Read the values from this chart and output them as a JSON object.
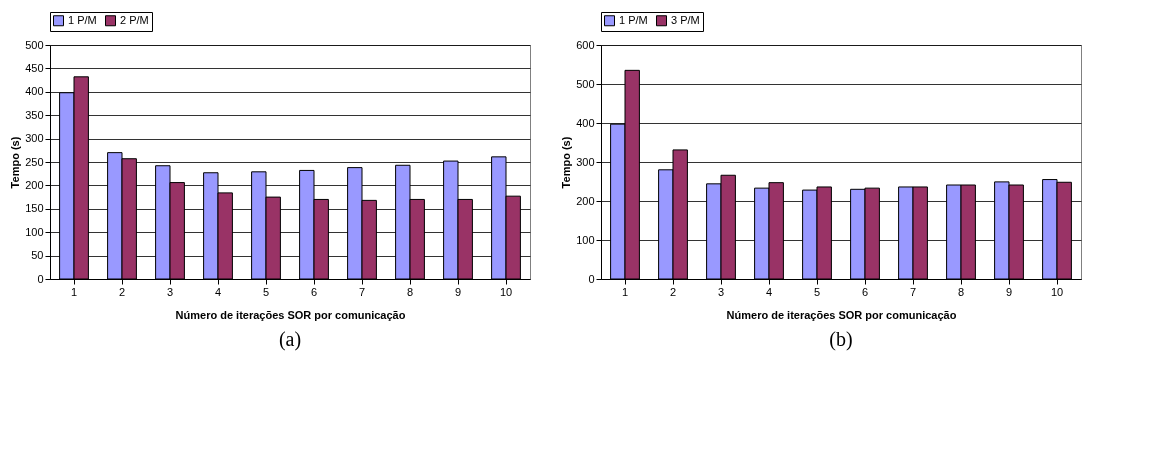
{
  "chart_data": [
    {
      "type": "bar",
      "xlabel": "Número de iterações SOR por comunicação",
      "ylabel": "Tempo (s)",
      "categories": [
        "1",
        "2",
        "3",
        "4",
        "5",
        "6",
        "7",
        "8",
        "9",
        "10"
      ],
      "series": [
        {
          "name": "1 P/M",
          "color": "#9999ff",
          "values": [
            398,
            270,
            242,
            227,
            229,
            232,
            238,
            243,
            252,
            261
          ]
        },
        {
          "name": "2 P/M",
          "color": "#993366",
          "values": [
            432,
            257,
            206,
            184,
            175,
            170,
            168,
            170,
            170,
            177
          ]
        }
      ],
      "ylim": [
        0,
        500
      ],
      "yticks": [
        0,
        50,
        100,
        150,
        200,
        250,
        300,
        350,
        400,
        450,
        500
      ],
      "grid": "y",
      "legend": "top",
      "annotations": [
        "(a)"
      ]
    },
    {
      "type": "bar",
      "xlabel": "Número de iterações SOR por comunicação",
      "ylabel": "Tempo (s)",
      "categories": [
        "1",
        "2",
        "3",
        "4",
        "5",
        "6",
        "7",
        "8",
        "9",
        "10"
      ],
      "series": [
        {
          "name": "1 P/M",
          "color": "#9999ff",
          "values": [
            397,
            280,
            244,
            233,
            228,
            230,
            236,
            241,
            249,
            255
          ]
        },
        {
          "name": "3 P/M",
          "color": "#993366",
          "values": [
            535,
            331,
            266,
            247,
            236,
            233,
            236,
            241,
            241,
            248
          ]
        }
      ],
      "ylim": [
        0,
        600
      ],
      "yticks": [
        0,
        100,
        200,
        300,
        400,
        500,
        600
      ],
      "grid": "y",
      "legend": "top",
      "annotations": [
        "(b)"
      ]
    }
  ]
}
